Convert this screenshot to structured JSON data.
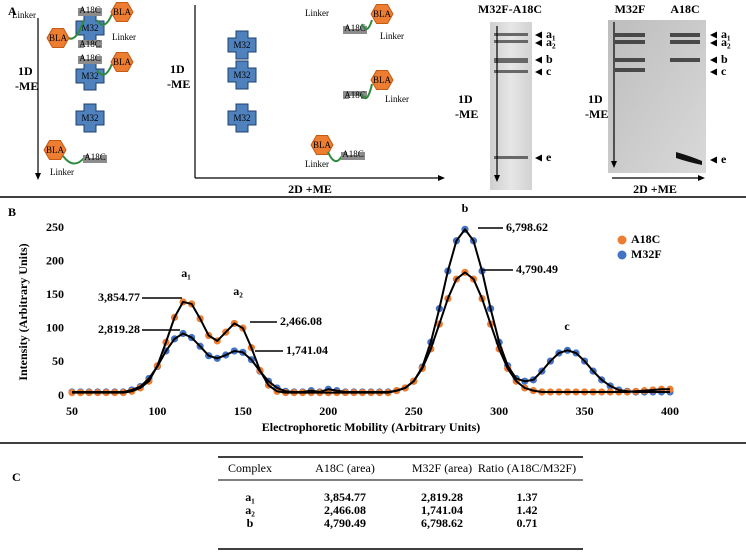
{
  "panel_a": {
    "label": "A",
    "axis_1d": [
      "1D",
      "-ME"
    ],
    "axis_2d": "2D  +ME",
    "shapes": {
      "linker": "Linker",
      "bla": "BLA",
      "a18c": "A18C",
      "m32": "M32"
    },
    "gel1": {
      "title": "M32F-A18C"
    },
    "gel2": {
      "lanes": [
        "M32F",
        "A18C"
      ]
    },
    "bands": [
      "a₁",
      "a₂",
      "b",
      "c",
      "e"
    ]
  },
  "chart_data": {
    "type": "scatter",
    "label": "B",
    "x_label": "Electrophoretic Mobility (Arbitrary Units)",
    "y_label": "Intensity (Arbitrary Units)",
    "x": [
      50,
      55,
      60,
      65,
      70,
      75,
      80,
      85,
      90,
      95,
      100,
      105,
      110,
      115,
      120,
      125,
      130,
      135,
      140,
      145,
      150,
      155,
      160,
      165,
      170,
      175,
      180,
      185,
      190,
      195,
      200,
      205,
      210,
      215,
      220,
      225,
      230,
      235,
      240,
      245,
      250,
      255,
      260,
      265,
      270,
      275,
      280,
      285,
      290,
      295,
      300,
      305,
      310,
      315,
      320,
      325,
      330,
      335,
      340,
      345,
      350,
      355,
      360,
      365,
      370,
      375,
      380,
      385,
      390,
      395,
      400
    ],
    "series": [
      {
        "name": "M32F",
        "color": "#4472c4",
        "values": [
          6,
          6,
          6,
          6,
          6,
          6,
          6,
          9,
          14,
          26,
          44,
          67,
          85,
          93,
          87,
          74,
          60,
          56,
          61,
          67,
          65,
          54,
          37,
          22,
          12,
          7,
          6,
          6,
          8,
          6,
          10,
          8,
          6,
          6,
          6,
          6,
          6,
          6,
          8,
          12,
          22,
          43,
          80,
          130,
          186,
          231,
          248,
          231,
          186,
          130,
          80,
          45,
          26,
          22,
          24,
          37,
          52,
          64,
          68,
          64,
          52,
          37,
          24,
          15,
          9,
          7,
          6,
          6,
          6,
          6,
          6
        ]
      },
      {
        "name": "A18C",
        "color": "#ed7d31",
        "values": [
          5,
          5,
          5,
          5,
          5,
          5,
          5,
          7,
          12,
          22,
          45,
          80,
          117,
          140,
          137,
          115,
          90,
          82,
          95,
          108,
          101,
          72,
          38,
          16,
          7,
          5,
          5,
          5,
          5,
          5,
          5,
          5,
          5,
          5,
          5,
          5,
          5,
          5,
          8,
          12,
          22,
          41,
          70,
          107,
          145,
          174,
          184,
          174,
          145,
          107,
          70,
          41,
          22,
          12,
          8,
          6,
          6,
          6,
          6,
          6,
          6,
          6,
          6,
          6,
          6,
          6,
          7,
          8,
          9,
          10,
          10
        ]
      }
    ],
    "xlim": [
      50,
      400
    ],
    "xticks": [
      50,
      100,
      150,
      200,
      250,
      300,
      350,
      400
    ],
    "ylim": [
      0,
      250
    ],
    "yticks": [
      0,
      50,
      100,
      150,
      200,
      250
    ],
    "legend": "upper right",
    "fit_color": "#000000",
    "peak_labels": [
      "a₁",
      "a₂",
      "b",
      "c"
    ],
    "area_labels": [
      "3,854.77",
      "2,819.28",
      "2,466.08",
      "1,741.04",
      "6,798.62",
      "4,790.49"
    ]
  },
  "panel_c": {
    "label": "C",
    "table": {
      "header": [
        "Complex",
        "A18C (area)",
        "M32F (area)",
        "Ratio (A18C/M32F)"
      ],
      "rows": [
        [
          "a₁",
          "3,854.77",
          "2,819.28",
          "1.37"
        ],
        [
          "a₂",
          "2,466.08",
          "1,741.04",
          "1.42"
        ],
        [
          "b",
          "4,790.49",
          "6,798.62",
          "0.71"
        ]
      ]
    }
  }
}
